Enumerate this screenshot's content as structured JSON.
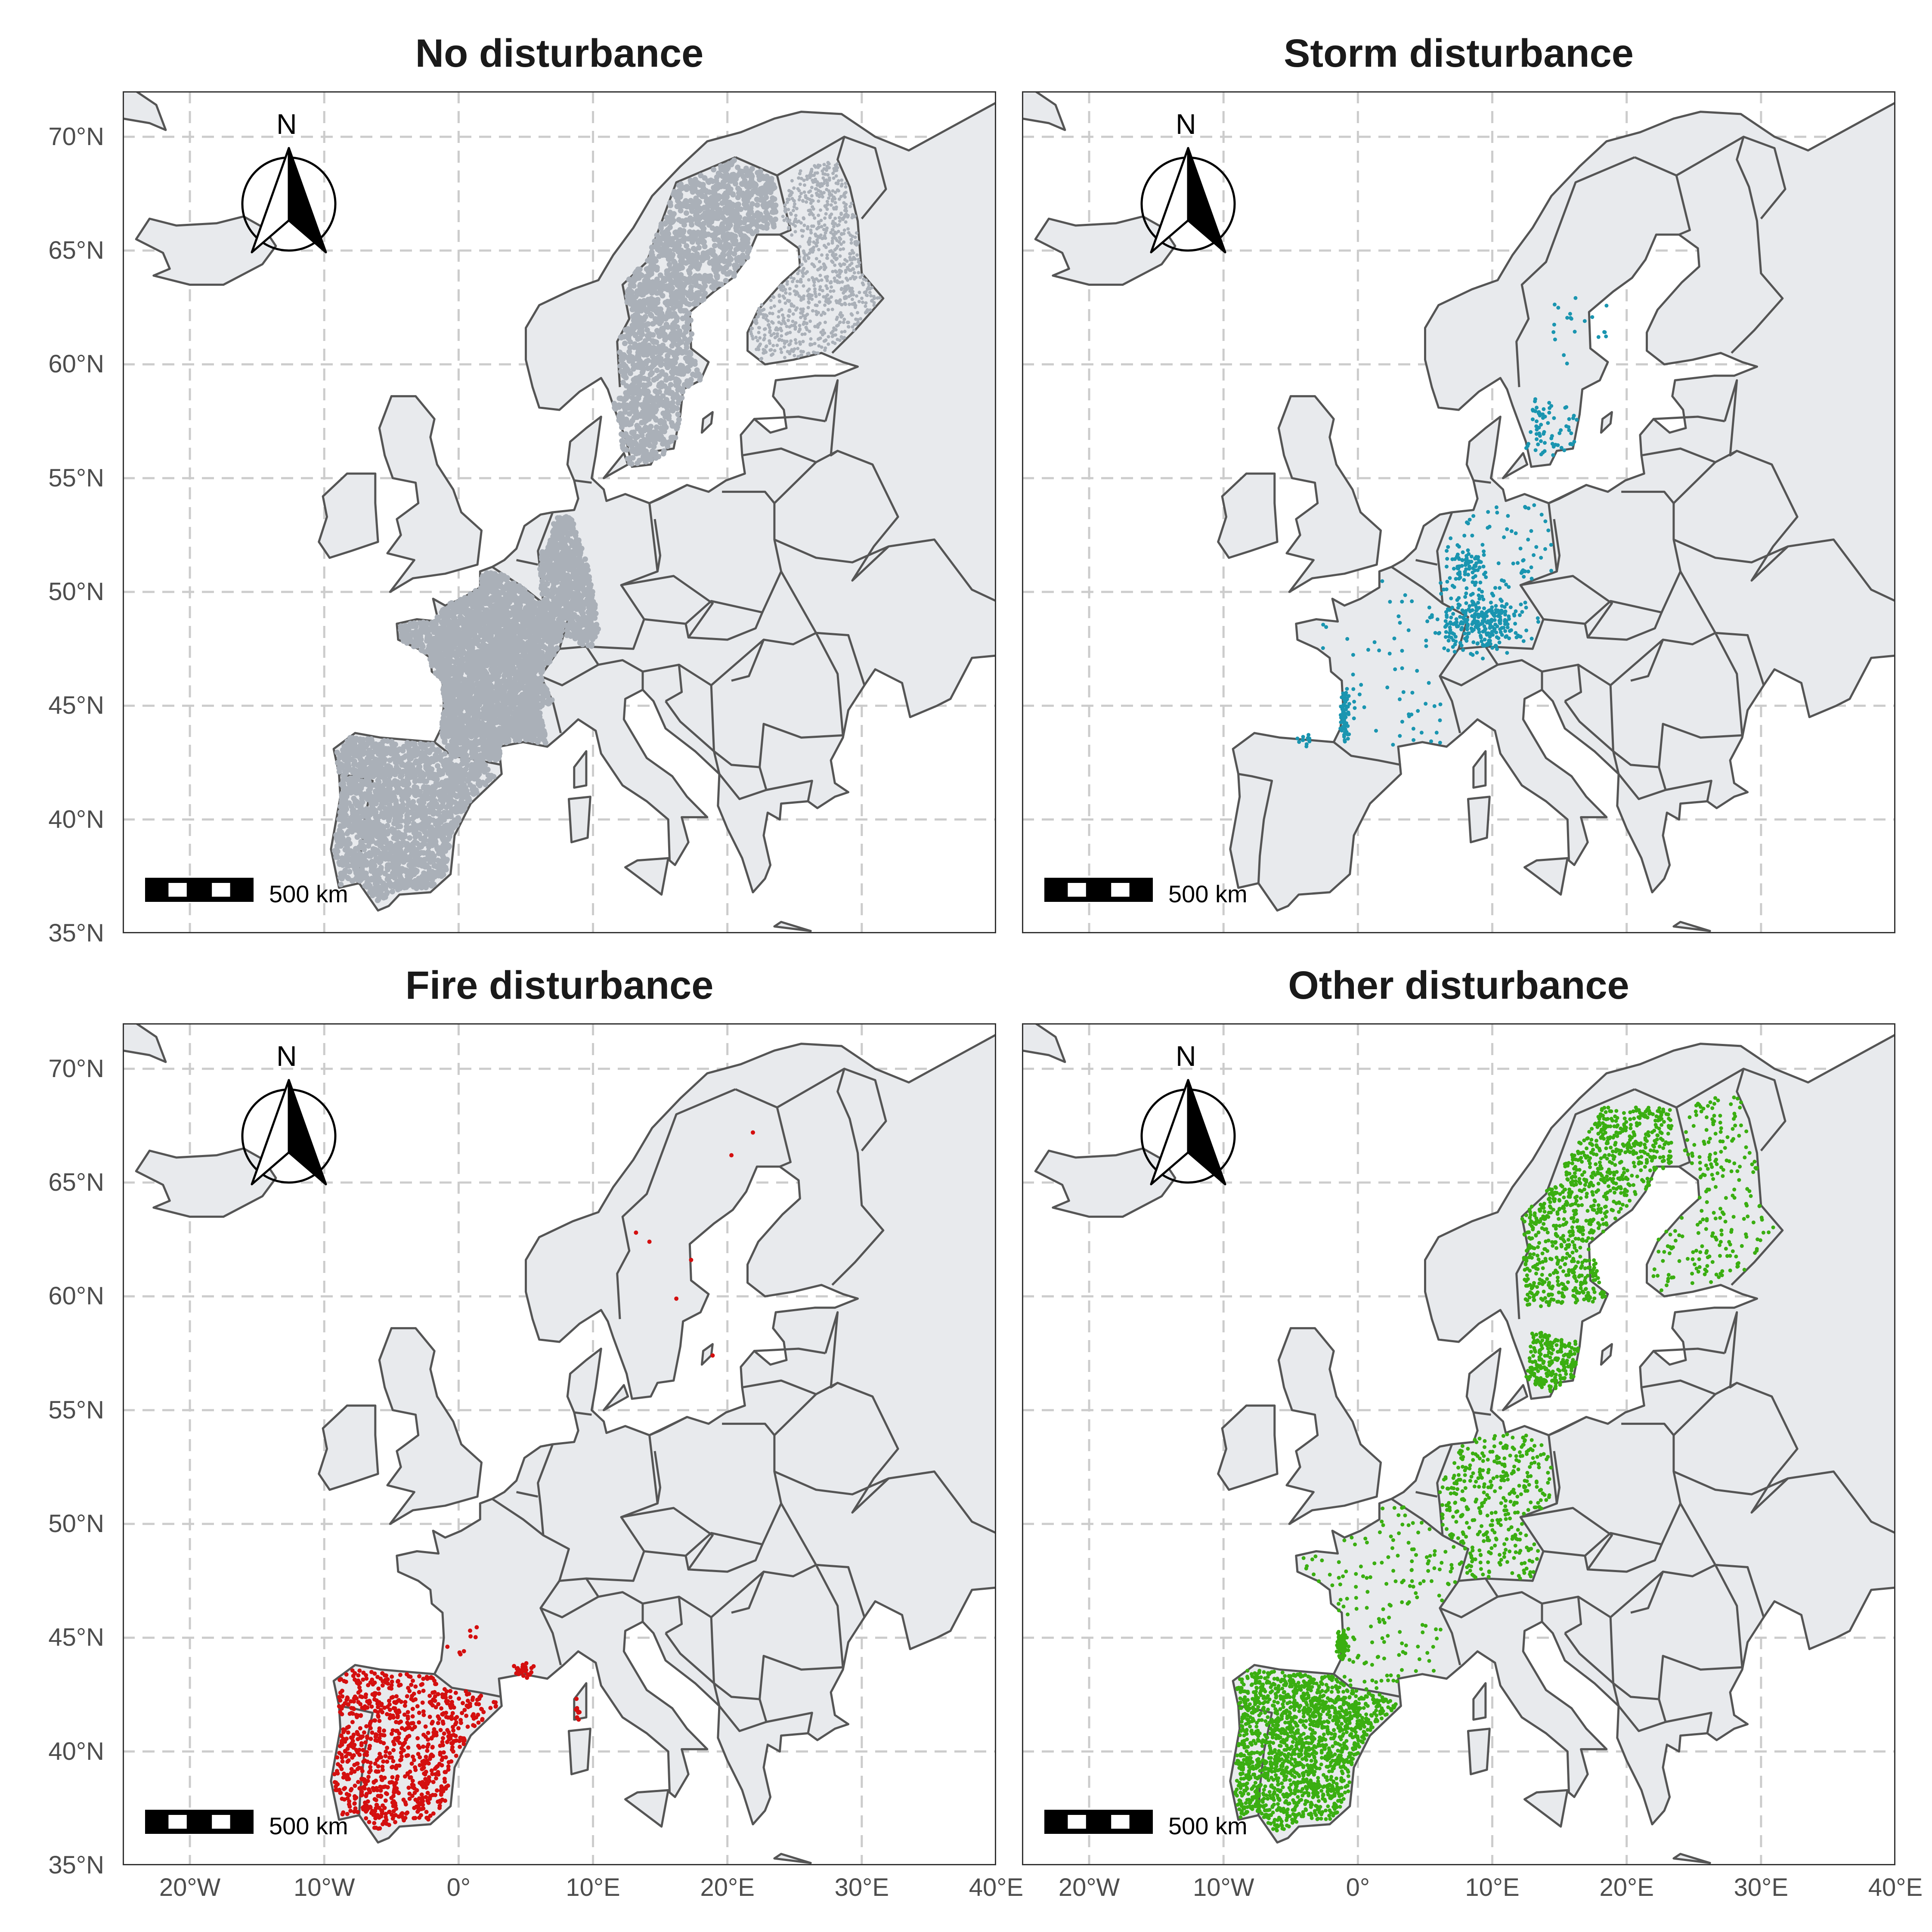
{
  "figure": {
    "panels": [
      {
        "id": "none",
        "title": "No disturbance",
        "color": "#aab0b8",
        "pattern": "none",
        "scale_label": "500 km",
        "north_label": "N"
      },
      {
        "id": "storm",
        "title": "Storm disturbance",
        "color": "#1a95b0",
        "pattern": "storm",
        "scale_label": "500 km",
        "north_label": "N"
      },
      {
        "id": "fire",
        "title": "Fire disturbance",
        "color": "#d40f0f",
        "pattern": "fire",
        "scale_label": "500 km",
        "north_label": "N"
      },
      {
        "id": "other",
        "title": "Other disturbance",
        "color": "#3aae11",
        "pattern": "other",
        "scale_label": "500 km",
        "north_label": "N"
      }
    ],
    "y_axis_ticks": [
      "70°N",
      "65°N",
      "60°N",
      "55°N",
      "50°N",
      "45°N",
      "40°N",
      "35°N"
    ],
    "x_axis_ticks": [
      "20°W",
      "10°W",
      "0°",
      "10°E",
      "20°E",
      "30°E",
      "40°E"
    ],
    "land_color": "#e8eaed",
    "border_color": "#555555",
    "grid_color": "#cccccc"
  },
  "chart_data": {
    "type": "scatter",
    "map_extent": {
      "lon": [
        -25,
        40
      ],
      "lat": [
        35,
        72
      ]
    },
    "lon_ticks": [
      -20,
      -10,
      0,
      10,
      20,
      30,
      40
    ],
    "lat_ticks": [
      35,
      40,
      45,
      50,
      55,
      60,
      65,
      70
    ],
    "series": [
      {
        "name": "No disturbance",
        "regions": [
          "Iberian Peninsula",
          "France",
          "western Germany",
          "Sweden",
          "Finland"
        ]
      },
      {
        "name": "Storm disturbance",
        "regions": [
          "southwest France",
          "northeast France",
          "southern Germany",
          "southern Sweden"
        ]
      },
      {
        "name": "Fire disturbance",
        "regions": [
          "Iberian Peninsula",
          "southern France",
          "Sweden"
        ]
      },
      {
        "name": "Other disturbance",
        "regions": [
          "Iberian Peninsula",
          "France",
          "Germany",
          "Sweden",
          "Finland"
        ]
      }
    ]
  }
}
